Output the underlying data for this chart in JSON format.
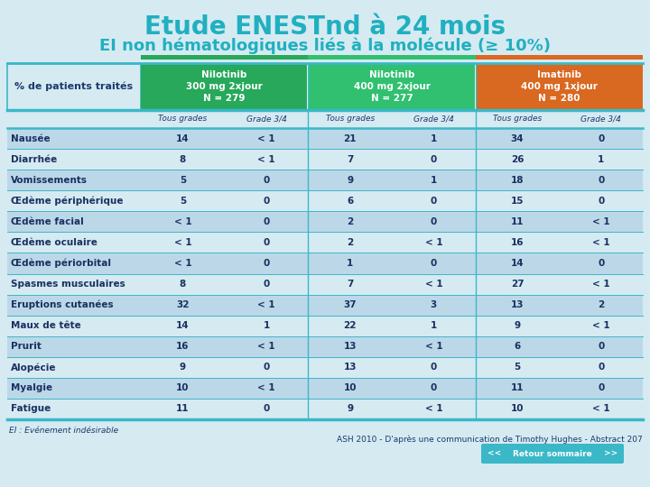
{
  "title1": "Etude ENESTnd à 24 mois",
  "title2": "EI non hématologiques liés à la molécule (≥ 10%)",
  "bg_color": "#d6eaf2",
  "header_col1": "% de patients traités",
  "headers": [
    {
      "label": "Nilotinib\n300 mg 2xjour\nN = 279",
      "color": "#27a85a"
    },
    {
      "label": "Nilotinib\n400 mg 2xjour\nN = 277",
      "color": "#30c070"
    },
    {
      "label": "Imatinib\n400 mg 1xjour\nN = 280",
      "color": "#d96820"
    }
  ],
  "subheaders": [
    "Tous grades",
    "Grade 3/4",
    "Tous grades",
    "Grade 3/4",
    "Tous grades",
    "Grade 3/4"
  ],
  "rows": [
    [
      "Nausée",
      "14",
      "< 1",
      "21",
      "1",
      "34",
      "0"
    ],
    [
      "Diarrhée",
      "8",
      "< 1",
      "7",
      "0",
      "26",
      "1"
    ],
    [
      "Vomissements",
      "5",
      "0",
      "9",
      "1",
      "18",
      "0"
    ],
    [
      "Œdème périphérique",
      "5",
      "0",
      "6",
      "0",
      "15",
      "0"
    ],
    [
      "Œdème facial",
      "< 1",
      "0",
      "2",
      "0",
      "11",
      "< 1"
    ],
    [
      "Œdème oculaire",
      "< 1",
      "0",
      "2",
      "< 1",
      "16",
      "< 1"
    ],
    [
      "Œdème périorbital",
      "< 1",
      "0",
      "1",
      "0",
      "14",
      "0"
    ],
    [
      "Spasmes musculaires",
      "8",
      "0",
      "7",
      "< 1",
      "27",
      "< 1"
    ],
    [
      "Eruptions cutanées",
      "32",
      "< 1",
      "37",
      "3",
      "13",
      "2"
    ],
    [
      "Maux de tête",
      "14",
      "1",
      "22",
      "1",
      "9",
      "< 1"
    ],
    [
      "Prurit",
      "16",
      "< 1",
      "13",
      "< 1",
      "6",
      "0"
    ],
    [
      "Alopécie",
      "9",
      "0",
      "13",
      "0",
      "5",
      "0"
    ],
    [
      "Myalgie",
      "10",
      "< 1",
      "10",
      "0",
      "11",
      "0"
    ],
    [
      "Fatigue",
      "11",
      "0",
      "9",
      "< 1",
      "10",
      "< 1"
    ]
  ],
  "row_color_even": "#bcd8e8",
  "row_color_odd": "#d6eaf2",
  "separator_color": "#3ab8c8",
  "title_color": "#20b0c0",
  "data_color": "#1a3060",
  "subheader_color": "#1a3a6b",
  "footnote1": "EI : Evénement indésirable",
  "footnote2": "ASH 2010 - D'après une communication de Timothy Hughes - Abstract 207",
  "nav_color": "#3ab8c8",
  "col0_label_fontsize": 7.5,
  "data_fontsize": 7.5,
  "subheader_fontsize": 6.5,
  "header_fontsize": 7.5,
  "title1_fontsize": 20,
  "title2_fontsize": 13
}
